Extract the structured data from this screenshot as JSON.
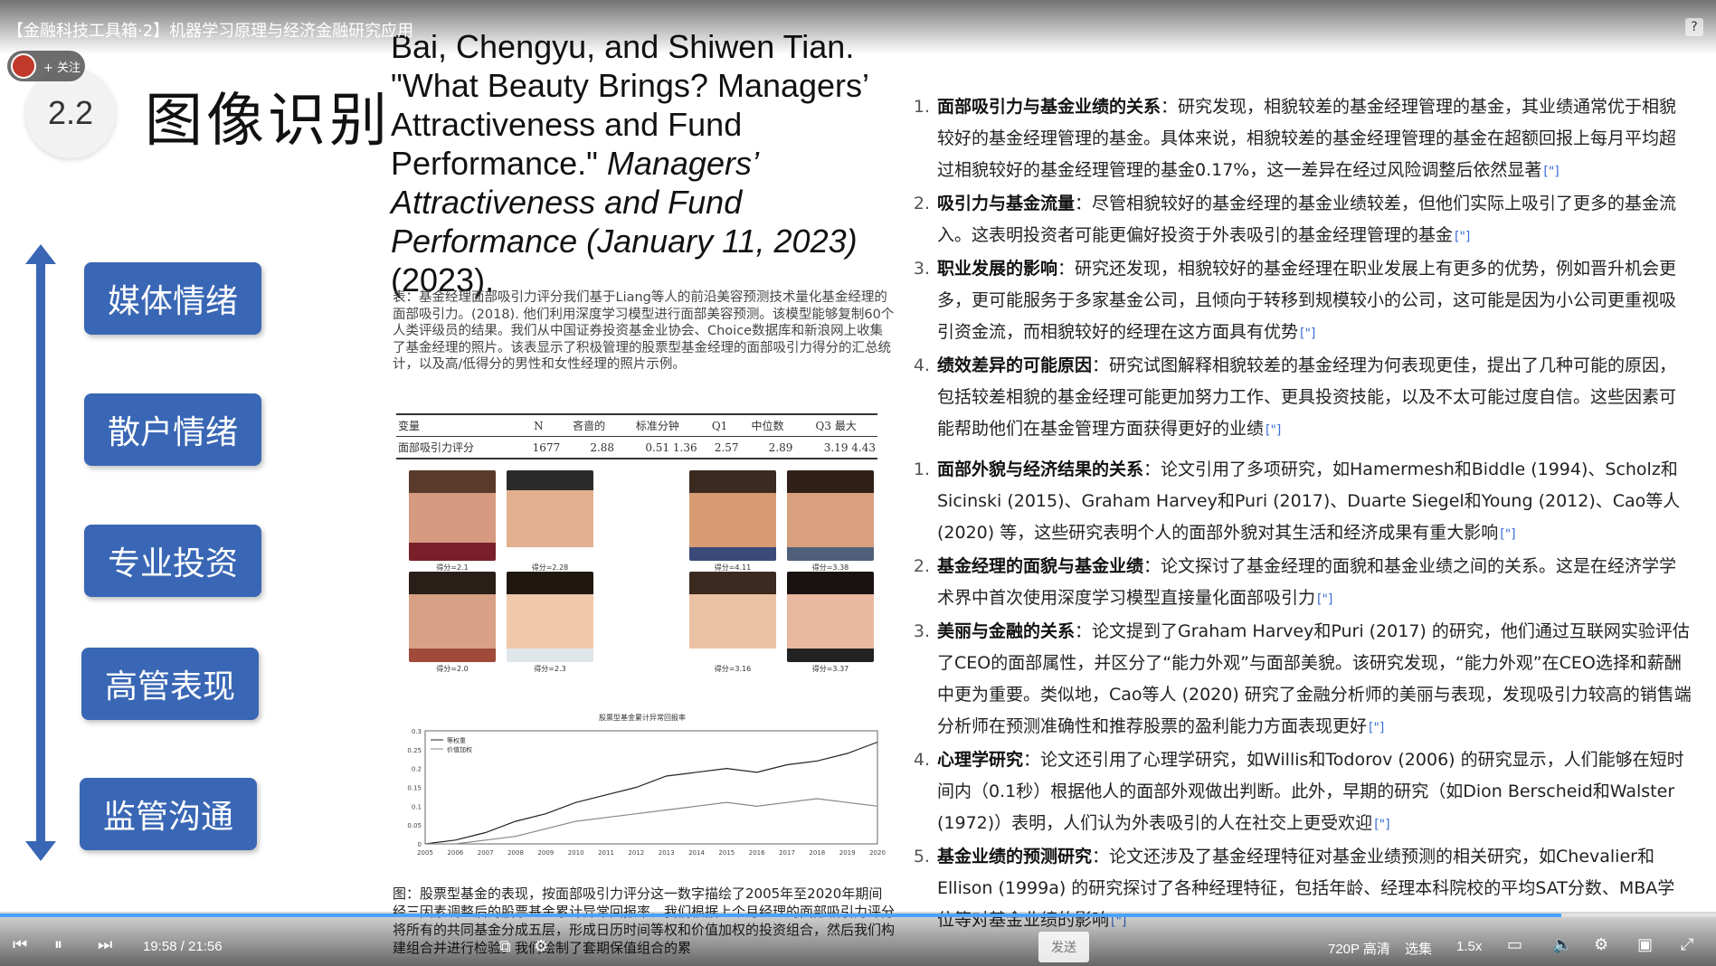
{
  "video": {
    "title": "【金融科技工具箱·2】机器学习原理与经济金融研究应用",
    "help_label": "?",
    "follow_label": "+ 关注"
  },
  "slide": {
    "section_number": "2.2",
    "section_title": "图像识别",
    "categories": [
      "媒体情绪",
      "散户情绪",
      "专业投资",
      "高管表现",
      "监管沟通"
    ],
    "citation": {
      "normal": "Bai, Chengyu, and Shiwen Tian. \"What Beauty Brings? Managers’ Attractiveness and Fund Performance.\" ",
      "italic": "Managers’ Attractiveness and Fund Performance (January 11, 2023)",
      "tail": " (2023)."
    },
    "table_note": "表：基金经理面部吸引力评分我们基于Liang等人的前沿美容预测技术量化基金经理的面部吸引力。(2018). 他们利用深度学习模型进行面部美容预测。该模型能够复制60个人类评级员的结果。我们从中国证券投资基金业协会、Choice数据库和新浪网上收集了基金经理的照片。该表显示了积极管理的股票型基金经理的面部吸引力得分的汇总统计，以及高/低得分的男性和女性经理的照片示例。",
    "stats_table": {
      "headers": [
        "变量",
        "N",
        "吝啬的",
        "标准分钟",
        "Q1",
        "中位数",
        "Q3 最大"
      ],
      "row": [
        "面部吸引力评分",
        "1677",
        "2.88",
        "0.51  1.36",
        "2.57",
        "2.89",
        "3.19  4.43"
      ]
    },
    "face_captions": [
      "得分=2.1",
      "得分=2.28",
      "得分=4.11",
      "得分=3.38",
      "得分=2.0",
      "得分=2.3",
      "得分=3.16",
      "得分=3.37"
    ],
    "figure_caption": "图：股票型基金的表现，按面部吸引力评分这一数字描绘了2005年至2020年期间经三因素调整后的股票基金累计异常回报率。我们根据上个月经理的面部吸引力评分将所有的共同基金分成五层，形成日历时间等权和价值加权的投资组合，然后我们构建组合并进行检验。我们绘制了套期保值组合的累"
  },
  "chart_data": {
    "type": "line",
    "title": "股票型基金累计异常回报率",
    "x": [
      "2005",
      "2006",
      "2007",
      "2008",
      "2009",
      "2010",
      "2011",
      "2012",
      "2013",
      "2014",
      "2015",
      "2016",
      "2017",
      "2018",
      "2019",
      "2020"
    ],
    "series": [
      {
        "name": "等权重",
        "values": [
          0.0,
          0.01,
          0.03,
          0.06,
          0.08,
          0.11,
          0.13,
          0.15,
          0.18,
          0.19,
          0.2,
          0.19,
          0.21,
          0.22,
          0.24,
          0.27
        ]
      },
      {
        "name": "价值加权",
        "values": [
          0.0,
          0.0,
          0.01,
          0.02,
          0.04,
          0.06,
          0.07,
          0.08,
          0.09,
          0.1,
          0.11,
          0.1,
          0.11,
          0.12,
          0.11,
          0.1
        ]
      }
    ],
    "ylim": [
      0,
      0.3
    ],
    "yticks": [
      "0.3",
      "0.25",
      "0.2",
      "0.15",
      "0.1",
      "0.05",
      "0"
    ],
    "colors": [
      "#222222",
      "#888888"
    ]
  },
  "right_list_1": [
    {
      "num": "1.",
      "head": "面部吸引力与基金业绩的关系",
      "text": "：研究发现，相貌较差的基金经理管理的基金，其业绩通常优于相貌较好的基金经理管理的基金。具体来说，相貌较差的基金经理管理的基金在超额回报上每月平均超过相貌较好的基金经理管理的基金0.17%，这一差异在经过风险调整后依然显著"
    },
    {
      "num": "2.",
      "head": "吸引力与基金流量",
      "text": "：尽管相貌较好的基金经理的基金业绩较差，但他们实际上吸引了更多的基金流入。这表明投资者可能更偏好投资于外表吸引的基金经理管理的基金"
    },
    {
      "num": "3.",
      "head": "职业发展的影响",
      "text": "：研究还发现，相貌较好的基金经理在职业发展上有更多的优势，例如晋升机会更多，更可能服务于多家基金公司，且倾向于转移到规模较小的公司，这可能是因为小公司更重视吸引资金流，而相貌较好的经理在这方面具有优势"
    },
    {
      "num": "4.",
      "head": "绩效差异的可能原因",
      "text": "：研究试图解释相貌较差的基金经理为何表现更佳，提出了几种可能的原因，包括较差相貌的基金经理可能更加努力工作、更具投资技能，以及不太可能过度自信。这些因素可能帮助他们在基金管理方面获得更好的业绩"
    }
  ],
  "right_list_2": [
    {
      "num": "1.",
      "head": "面部外貌与经济结果的关系",
      "text": "：论文引用了多项研究，如Hamermesh和Biddle (1994)、Scholz和Sicinski (2015)、Graham Harvey和Puri (2017)、Duarte Siegel和Young (2012)、Cao等人 (2020) 等，这些研究表明个人的面部外貌对其生活和经济成果有重大影响"
    },
    {
      "num": "2.",
      "head": "基金经理的面貌与基金业绩",
      "text": "：论文探讨了基金经理的面貌和基金业绩之间的关系。这是在经济学学术界中首次使用深度学习模型直接量化面部吸引力"
    },
    {
      "num": "3.",
      "head": "美丽与金融的关系",
      "text": "：论文提到了Graham Harvey和Puri (2017) 的研究，他们通过互联网实验评估了CEO的面部属性，并区分了“能力外观”与面部美貌。该研究发现，“能力外观”在CEO选择和薪酬中更为重要。类似地，Cao等人 (2020) 研究了金融分析师的美丽与表现，发现吸引力较高的销售端分析师在预测准确性和推荐股票的盈利能力方面表现更好"
    },
    {
      "num": "4.",
      "head": "心理学研究",
      "text": "：论文还引用了心理学研究，如Willis和Todorov (2006) 的研究显示，人们能够在短时间内（0.1秒）根据他人的面部外观做出判断。此外，早期的研究（如Dion Berscheid和Walster (1972)）表明，人们认为外表吸引的人在社交上更受欢迎"
    },
    {
      "num": "5.",
      "head": "基金业绩的预测研究",
      "text": "：论文还涉及了基金经理特征对基金业绩预测的相关研究，如Chevalier和Ellison (1999a) 的研究探讨了各种经理特征，包括年龄、经理本科院校的平均SAT分数、MBA学位等对基金业绩的影响"
    }
  ],
  "cite_icon": "[\"]",
  "player": {
    "time": "19:58 / 21:56",
    "progress": 0.91,
    "send_label": "发送",
    "quality": "720P 高清",
    "episodes": "选集",
    "speed": "1.5x"
  }
}
